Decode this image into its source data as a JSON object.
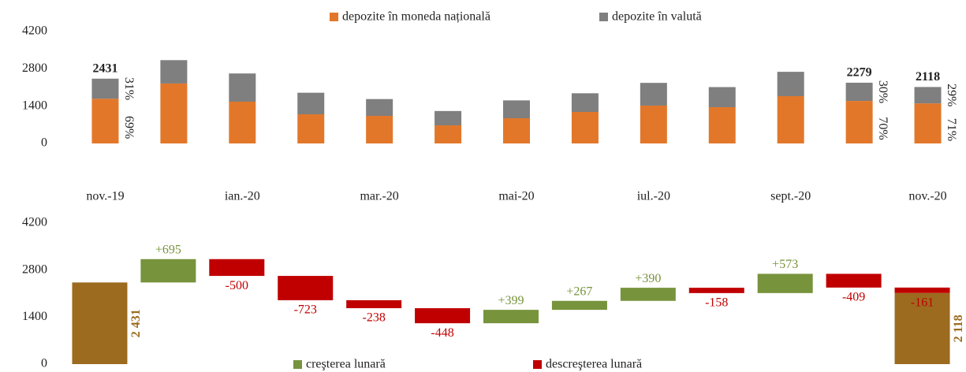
{
  "chart_data": [
    {
      "type": "stacked_bar",
      "categories": [
        "nov.-19",
        null,
        "ian.-20",
        null,
        "mar.-20",
        null,
        "mai-20",
        null,
        "iul.-20",
        null,
        "sept.-20",
        null,
        "nov.-20"
      ],
      "series": [
        {
          "name": "depozite în moneda națională",
          "color": "#e2772a",
          "values": [
            1677,
            2250,
            1568,
            1094,
            1035,
            680,
            946,
            1183,
            1420,
            1361,
            1775,
            1595,
            1504
          ],
          "value_labels": [
            "69%",
            null,
            null,
            null,
            null,
            null,
            null,
            null,
            null,
            null,
            null,
            "70%",
            "71%"
          ]
        },
        {
          "name": "depozite în valută",
          "color": "#7f7f7f",
          "values": [
            754,
            876,
            1058,
            809,
            630,
            537,
            670,
            700,
            853,
            754,
            913,
            684,
            614
          ],
          "value_labels": [
            "31%",
            null,
            null,
            null,
            null,
            null,
            null,
            null,
            null,
            null,
            null,
            "30%",
            "29%"
          ]
        }
      ],
      "total_labels": [
        2431,
        null,
        null,
        null,
        null,
        null,
        null,
        null,
        null,
        null,
        null,
        2279,
        2118
      ],
      "ylim": [
        0,
        4200
      ],
      "yticks": [
        0,
        1400,
        2800,
        4200
      ],
      "legend": "top"
    },
    {
      "type": "waterfall",
      "start": 2431,
      "start_label": "2 431",
      "start_color": "#9c6b1f",
      "changes": [
        695,
        -500,
        -723,
        -238,
        -448,
        399,
        267,
        390,
        -158,
        573,
        -409,
        -161
      ],
      "change_labels": [
        "+695",
        "-500",
        "-723",
        "-238",
        "-448",
        "+399",
        "+267",
        "+390",
        "-158",
        "+573",
        "-409",
        "-161"
      ],
      "end": 2118,
      "end_label": "2 118",
      "end_color": "#9c6b1f",
      "series": [
        {
          "name": "creşterea lunară",
          "color": "#77933c"
        },
        {
          "name": "descreşterea lunară",
          "color": "#c00000"
        }
      ],
      "ylim": [
        0,
        4200
      ],
      "yticks": [
        0,
        1400,
        2800,
        4200
      ],
      "legend": "bottom"
    }
  ]
}
